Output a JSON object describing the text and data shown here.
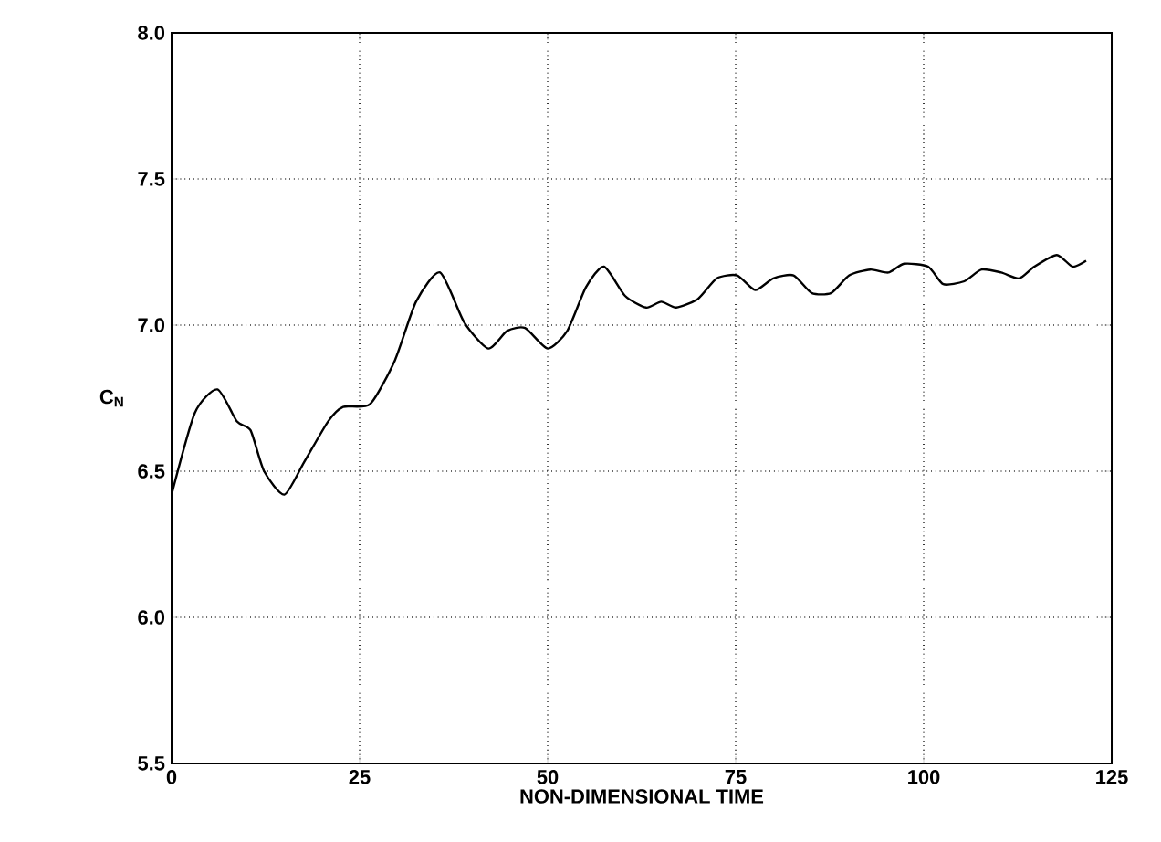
{
  "chart_data": {
    "type": "line",
    "xlabel": "NON-DIMENSIONAL TIME",
    "ylabel": "C$_{N}$",
    "xlim": [
      0,
      125
    ],
    "ylim": [
      5.5,
      8.0
    ],
    "xticks": [
      0,
      25,
      50,
      75,
      100,
      125
    ],
    "yticks": [
      {
        "value": 5.5,
        "label": "5.5"
      },
      {
        "value": 6,
        "label": "6.0"
      },
      {
        "value": 6.5,
        "label": "6.5"
      },
      {
        "value": 7,
        "label": "7.0"
      },
      {
        "value": 7.5,
        "label": "7.5"
      },
      {
        "value": 8,
        "label": "8.0"
      }
    ],
    "grid": true,
    "marker": "none",
    "line_style": "solid",
    "series": [
      {
        "color": "#000000",
        "x": [
          0,
          3.1,
          6.1,
          8.7,
          10.5,
          12.3,
          15.0,
          17.6,
          20.8,
          22.8,
          26.4,
          29.7,
          32.5,
          35.7,
          38.9,
          42.1,
          44.6,
          47.0,
          50.0,
          52.6,
          55.1,
          57.5,
          60.3,
          63.1,
          65.1,
          67.1,
          70.0,
          72.5,
          75.2,
          77.6,
          80.0,
          82.7,
          85.1,
          87.7,
          90.1,
          92.9,
          95.3,
          97.4,
          100.6,
          102.6,
          105.4,
          107.7,
          110.3,
          112.7,
          114.7,
          117.7,
          119.8,
          121.6
        ],
        "values": [
          6.42,
          6.7,
          6.78,
          6.67,
          6.64,
          6.5,
          6.42,
          6.53,
          6.67,
          6.72,
          6.73,
          6.88,
          7.08,
          7.18,
          7.01,
          6.92,
          6.98,
          6.99,
          6.92,
          6.98,
          7.13,
          7.2,
          7.1,
          7.06,
          7.08,
          7.06,
          7.09,
          7.16,
          7.17,
          7.12,
          7.16,
          7.17,
          7.11,
          7.11,
          7.17,
          7.19,
          7.18,
          7.21,
          7.2,
          7.14,
          7.15,
          7.19,
          7.18,
          7.16,
          7.2,
          7.24,
          7.2,
          7.22
        ]
      }
    ]
  }
}
